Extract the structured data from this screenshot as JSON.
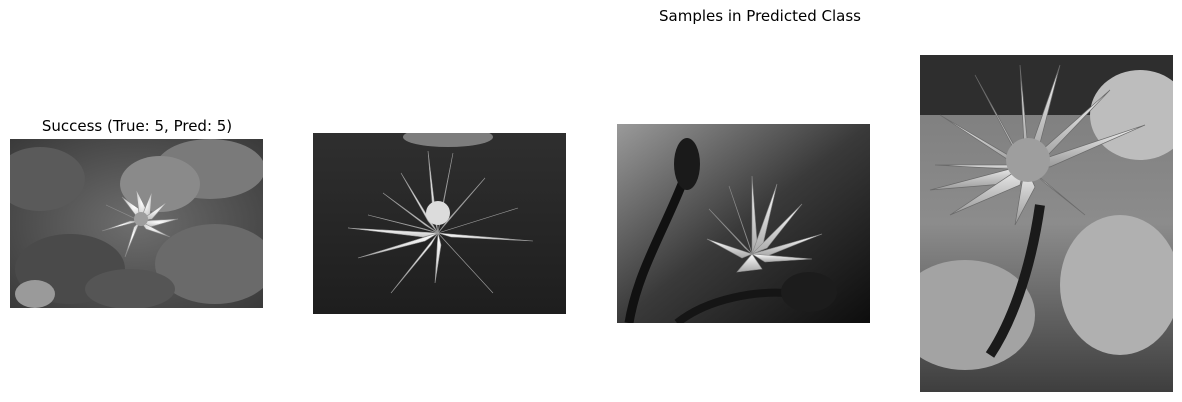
{
  "figure": {
    "suptitle": "Samples in Predicted Class"
  },
  "panels": [
    {
      "title": "Success (True: 5, Pred: 5)",
      "image": "water-lily-on-lily-pads-photo"
    },
    {
      "title": "",
      "image": "white-water-lily-dark-water-photo"
    },
    {
      "title": "",
      "image": "water-lily-with-buds-photo"
    },
    {
      "title": "",
      "image": "water-lily-tall-stem-closeup-photo"
    }
  ]
}
